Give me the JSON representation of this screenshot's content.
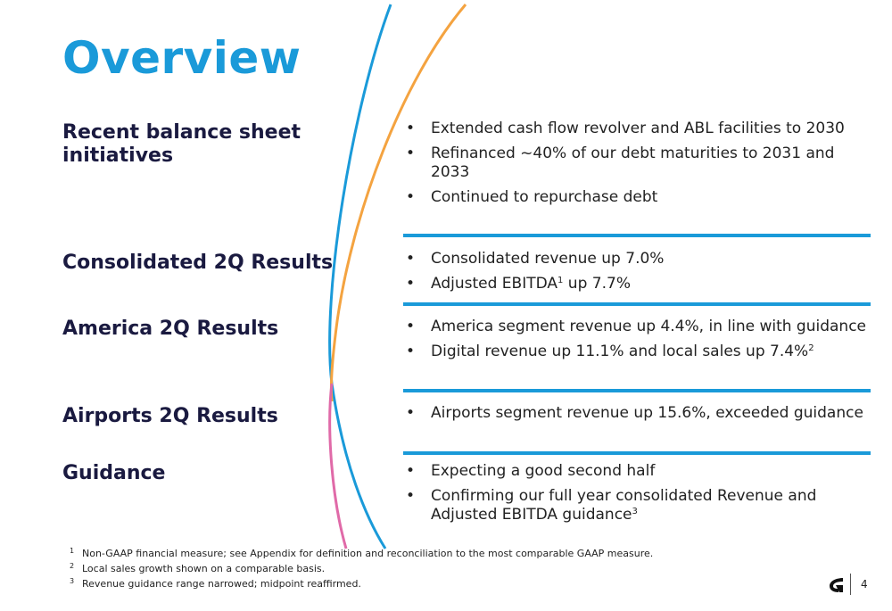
{
  "title": "Overview",
  "colors": {
    "accent": "#1a9ad9",
    "heading": "#1a1a40",
    "orange": "#f4a340",
    "pink": "#e06aa8"
  },
  "sections": [
    {
      "label": "Recent balance sheet initiatives",
      "bullets": [
        "Extended cash flow revolver and ABL facilities to 2030",
        "Refinanced ~40% of our debt maturities to 2031 and 2033",
        "Continued to repurchase debt"
      ]
    },
    {
      "label": "Consolidated 2Q Results",
      "bullets": [
        "Consolidated revenue up 7.0%",
        "Adjusted EBITDA",
        "1",
        " up 7.7%"
      ]
    },
    {
      "label": "America 2Q Results",
      "bullets": [
        "America segment revenue up 4.4%, in line with guidance",
        "Digital revenue up 11.1% and local sales up 7.4%",
        "2"
      ]
    },
    {
      "label": "Airports 2Q Results",
      "bullets": [
        "Airports segment revenue up 15.6%, exceeded guidance"
      ]
    },
    {
      "label": "Guidance",
      "bullets": [
        "Expecting a good second half",
        "Confirming our full year consolidated Revenue and Adjusted EBITDA guidance",
        "3"
      ]
    }
  ],
  "footnotes": [
    {
      "num": "1",
      "text": "Non-GAAP financial measure; see Appendix for definition and reconciliation to the most comparable GAAP measure."
    },
    {
      "num": "2",
      "text": "Local sales growth shown on a comparable basis."
    },
    {
      "num": "3",
      "text": "Revenue guidance range narrowed; midpoint reaffirmed."
    }
  ],
  "page_number": "4",
  "logo_icon": "company-logo-icon"
}
